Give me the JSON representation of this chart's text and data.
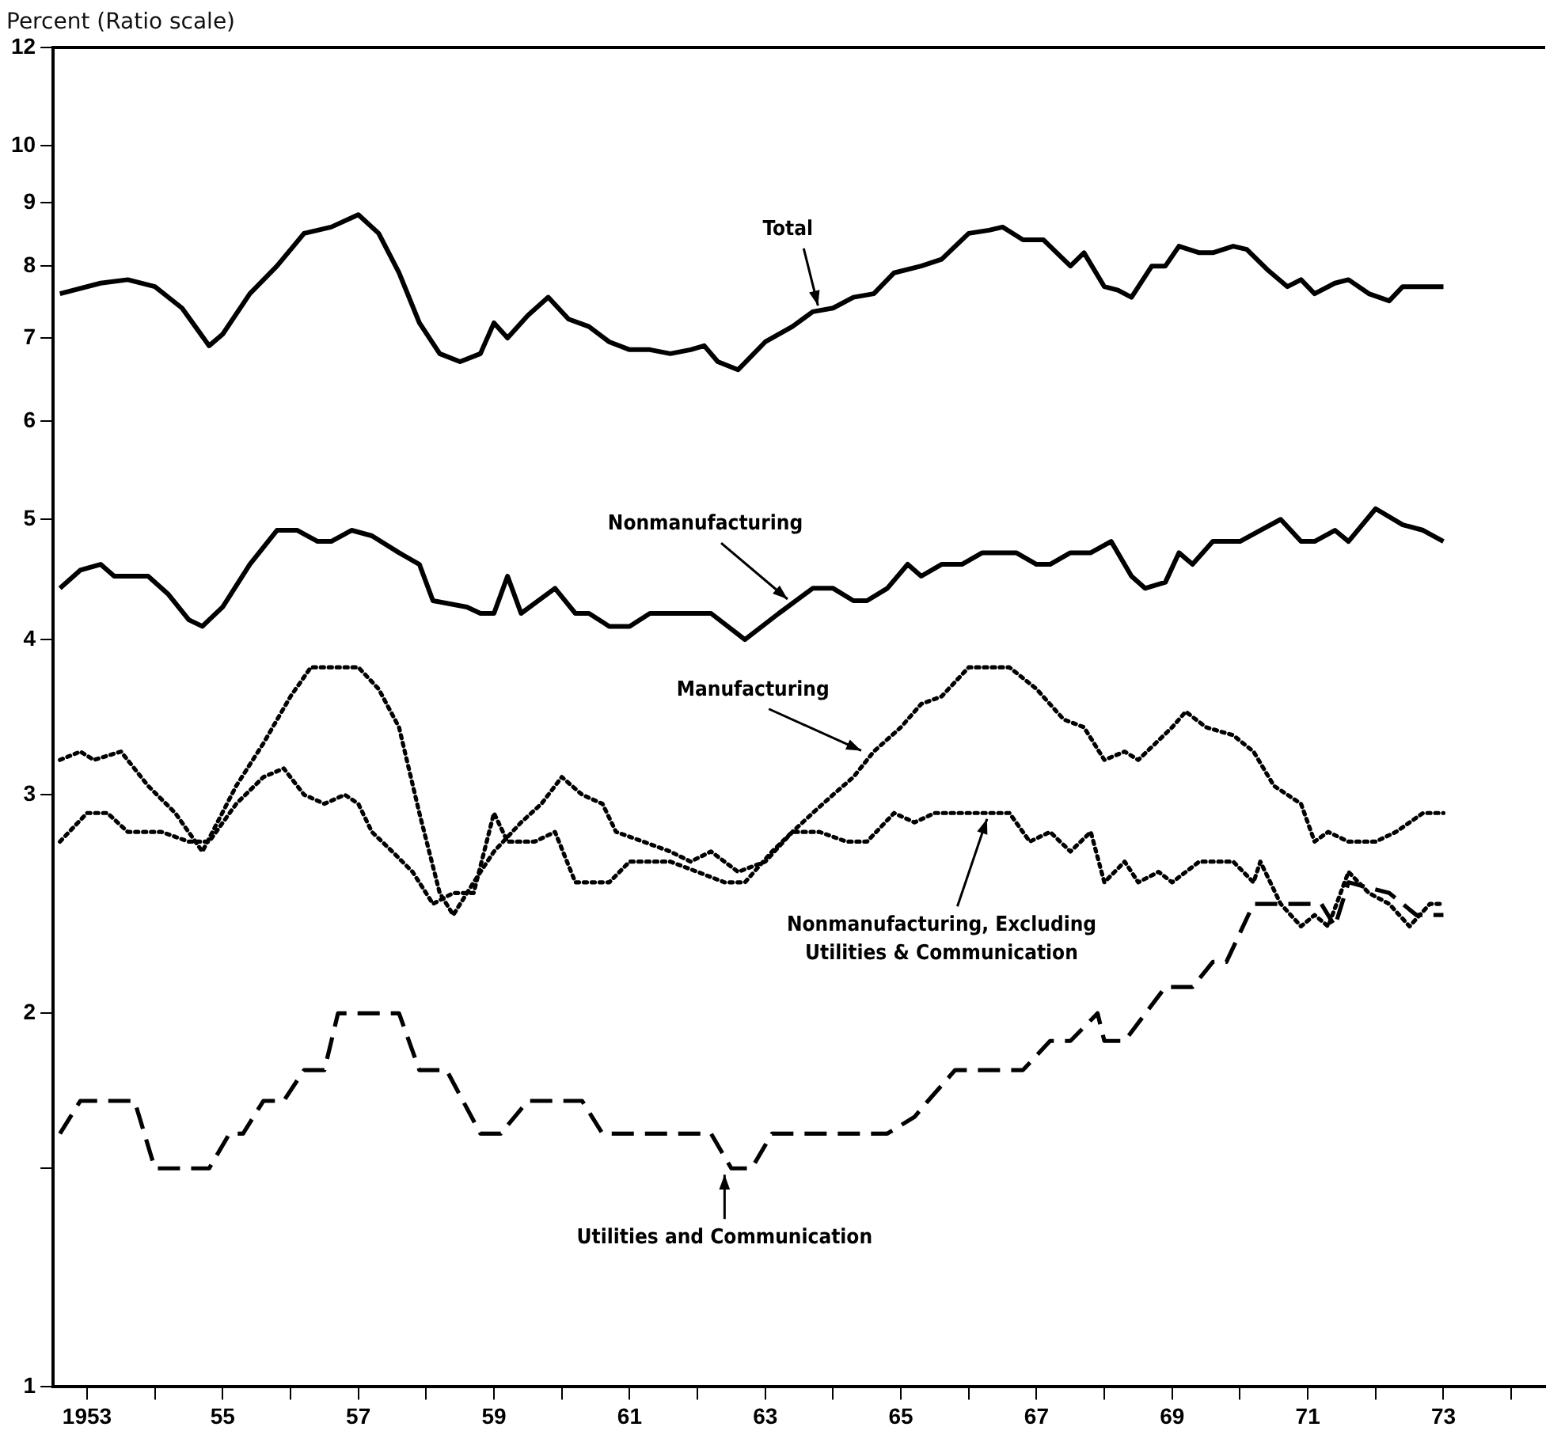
{
  "chart_data": {
    "type": "line",
    "ylabel": "Percent (Ratio scale)",
    "log": "y",
    "grid": false,
    "legend": false,
    "marker": "none",
    "xlim": [
      1952.5,
      1974.5
    ],
    "xticks": [
      1953,
      {
        "value": 1954,
        "label": null
      },
      {
        "value": 1955,
        "label": "55"
      },
      {
        "value": 1956,
        "label": null
      },
      {
        "value": 1957,
        "label": "57"
      },
      {
        "value": 1958,
        "label": null
      },
      {
        "value": 1959,
        "label": "59"
      },
      {
        "value": 1960,
        "label": null
      },
      {
        "value": 1961,
        "label": "61"
      },
      {
        "value": 1962,
        "label": null
      },
      {
        "value": 1963,
        "label": "63"
      },
      {
        "value": 1964,
        "label": null
      },
      {
        "value": 1965,
        "label": "65"
      },
      {
        "value": 1966,
        "label": null
      },
      {
        "value": 1967,
        "label": "67"
      },
      {
        "value": 1968,
        "label": null
      },
      {
        "value": 1969,
        "label": "69"
      },
      {
        "value": 1970,
        "label": null
      },
      {
        "value": 1971,
        "label": "71"
      },
      {
        "value": 1972,
        "label": null
      },
      {
        "value": 1973,
        "label": "73"
      },
      {
        "value": 1974,
        "label": null
      }
    ],
    "ylim": [
      1,
      12
    ],
    "yticks": [
      1,
      {
        "value": 1.5,
        "label": null
      },
      2,
      3,
      4,
      5,
      6,
      7,
      8,
      9,
      10,
      12
    ],
    "series": [
      {
        "color": "#000000",
        "line_style": "solid",
        "x": [
          1952.6,
          1953.2,
          1953.6,
          1954.0,
          1954.4,
          1954.8,
          1955.0,
          1955.4,
          1955.8,
          1956.2,
          1956.6,
          1957.0,
          1957.3,
          1957.6,
          1957.9,
          1958.2,
          1958.5,
          1958.8,
          1959.0,
          1959.2,
          1959.5,
          1959.8,
          1960.1,
          1960.4,
          1960.7,
          1961.0,
          1961.3,
          1961.6,
          1961.9,
          1962.1,
          1962.3,
          1962.6,
          1963.0,
          1963.4,
          1963.7,
          1964.0,
          1964.3,
          1964.6,
          1964.9,
          1965.3,
          1965.6,
          1966.0,
          1966.3,
          1966.5,
          1966.8,
          1967.1,
          1967.5,
          1967.7,
          1968.0,
          1968.2,
          1968.4,
          1968.7,
          1968.9,
          1969.1,
          1969.4,
          1969.6,
          1969.9,
          1970.1,
          1970.4,
          1970.7,
          1970.9,
          1971.1,
          1971.4,
          1971.6,
          1971.9,
          1972.2,
          1972.4,
          1973.0
        ],
        "values": [
          7.6,
          7.75,
          7.8,
          7.7,
          7.4,
          6.9,
          7.05,
          7.6,
          8.0,
          8.5,
          8.6,
          8.8,
          8.5,
          7.9,
          7.2,
          6.8,
          6.7,
          6.8,
          7.2,
          7.0,
          7.3,
          7.55,
          7.25,
          7.15,
          6.95,
          6.85,
          6.85,
          6.8,
          6.85,
          6.9,
          6.7,
          6.6,
          6.95,
          7.15,
          7.35,
          7.4,
          7.55,
          7.6,
          7.9,
          8.0,
          8.1,
          8.5,
          8.55,
          8.6,
          8.4,
          8.4,
          8.0,
          8.2,
          7.7,
          7.65,
          7.55,
          8.0,
          8.0,
          8.3,
          8.2,
          8.2,
          8.3,
          8.25,
          7.95,
          7.7,
          7.8,
          7.6,
          7.75,
          7.8,
          7.6,
          7.5,
          7.7,
          7.7
        ]
      },
      {
        "color": "#000000",
        "line_style": "solid",
        "x": [
          1952.6,
          1952.9,
          1953.2,
          1953.4,
          1953.9,
          1954.2,
          1954.5,
          1954.7,
          1955.0,
          1955.4,
          1955.8,
          1956.1,
          1956.4,
          1956.6,
          1956.9,
          1957.2,
          1957.6,
          1957.9,
          1958.1,
          1958.6,
          1958.8,
          1959.0,
          1959.2,
          1959.4,
          1959.9,
          1960.2,
          1960.4,
          1960.7,
          1961.0,
          1961.3,
          1962.2,
          1962.7,
          1963.2,
          1963.7,
          1964.0,
          1964.3,
          1964.5,
          1964.8,
          1965.1,
          1965.3,
          1965.6,
          1965.9,
          1966.2,
          1966.7,
          1967.0,
          1967.2,
          1967.5,
          1967.8,
          1968.1,
          1968.4,
          1968.6,
          1968.9,
          1969.1,
          1969.3,
          1969.6,
          1970.0,
          1970.3,
          1970.6,
          1970.9,
          1971.1,
          1971.4,
          1971.6,
          1972.0,
          1972.4,
          1972.7,
          1973.0
        ],
        "values": [
          4.4,
          4.55,
          4.6,
          4.5,
          4.5,
          4.35,
          4.15,
          4.1,
          4.25,
          4.6,
          4.9,
          4.9,
          4.8,
          4.8,
          4.9,
          4.85,
          4.7,
          4.6,
          4.3,
          4.25,
          4.2,
          4.2,
          4.5,
          4.2,
          4.4,
          4.2,
          4.2,
          4.1,
          4.1,
          4.2,
          4.2,
          4.0,
          4.2,
          4.4,
          4.4,
          4.3,
          4.3,
          4.4,
          4.6,
          4.5,
          4.6,
          4.6,
          4.7,
          4.7,
          4.6,
          4.6,
          4.7,
          4.7,
          4.8,
          4.5,
          4.4,
          4.45,
          4.7,
          4.6,
          4.8,
          4.8,
          4.9,
          5.0,
          4.8,
          4.8,
          4.9,
          4.8,
          5.1,
          4.95,
          4.9,
          4.8
        ]
      },
      {
        "color": "#000000",
        "line_style": "dotted",
        "x": [
          1952.6,
          1952.9,
          1953.1,
          1953.5,
          1953.9,
          1954.3,
          1954.7,
          1955.2,
          1955.6,
          1956.0,
          1956.3,
          1957.0,
          1957.3,
          1957.6,
          1957.9,
          1958.2,
          1958.4,
          1958.7,
          1959.0,
          1959.4,
          1959.7,
          1960.0,
          1960.3,
          1960.6,
          1960.8,
          1961.2,
          1961.6,
          1961.9,
          1962.2,
          1962.6,
          1963.0,
          1963.4,
          1963.7,
          1964.0,
          1964.3,
          1964.6,
          1965.0,
          1965.3,
          1965.6,
          1966.0,
          1966.6,
          1967.0,
          1967.4,
          1967.7,
          1968.0,
          1968.3,
          1968.5,
          1969.0,
          1969.2,
          1969.5,
          1969.9,
          1970.2,
          1970.5,
          1970.9,
          1971.1,
          1971.3,
          1971.6,
          1972.0,
          1972.3,
          1972.7,
          1973.0
        ],
        "values": [
          3.2,
          3.25,
          3.2,
          3.25,
          3.05,
          2.9,
          2.7,
          3.05,
          3.3,
          3.6,
          3.8,
          3.8,
          3.65,
          3.4,
          2.9,
          2.5,
          2.4,
          2.55,
          2.7,
          2.85,
          2.95,
          3.1,
          3.0,
          2.95,
          2.8,
          2.75,
          2.7,
          2.65,
          2.7,
          2.6,
          2.65,
          2.8,
          2.9,
          3.0,
          3.1,
          3.25,
          3.4,
          3.55,
          3.6,
          3.8,
          3.8,
          3.65,
          3.45,
          3.4,
          3.2,
          3.25,
          3.2,
          3.4,
          3.5,
          3.4,
          3.35,
          3.25,
          3.05,
          2.95,
          2.75,
          2.8,
          2.75,
          2.75,
          2.8,
          2.9,
          2.9
        ]
      },
      {
        "color": "#000000",
        "line_style": "dotted",
        "x": [
          1952.6,
          1953.0,
          1953.3,
          1953.6,
          1954.1,
          1954.5,
          1954.8,
          1955.2,
          1955.6,
          1955.9,
          1956.2,
          1956.5,
          1956.8,
          1957.0,
          1957.2,
          1957.5,
          1957.8,
          1958.1,
          1958.4,
          1958.7,
          1959.0,
          1959.2,
          1959.6,
          1959.9,
          1960.2,
          1960.7,
          1961.0,
          1961.6,
          1962.0,
          1962.4,
          1962.7,
          1963.1,
          1963.4,
          1963.8,
          1964.2,
          1964.5,
          1964.9,
          1965.2,
          1965.5,
          1966.6,
          1966.9,
          1967.2,
          1967.5,
          1967.8,
          1968.0,
          1968.3,
          1968.5,
          1968.8,
          1969.0,
          1969.4,
          1969.9,
          1970.2,
          1970.3,
          1970.6,
          1970.9,
          1971.1,
          1971.3,
          1971.6,
          1971.9,
          1972.2,
          1972.5,
          1972.8,
          1973.0
        ],
        "values": [
          2.75,
          2.9,
          2.9,
          2.8,
          2.8,
          2.75,
          2.75,
          2.95,
          3.1,
          3.15,
          3.0,
          2.95,
          3.0,
          2.95,
          2.8,
          2.7,
          2.6,
          2.45,
          2.5,
          2.5,
          2.9,
          2.75,
          2.75,
          2.8,
          2.55,
          2.55,
          2.65,
          2.65,
          2.6,
          2.55,
          2.55,
          2.7,
          2.8,
          2.8,
          2.75,
          2.75,
          2.9,
          2.85,
          2.9,
          2.9,
          2.75,
          2.8,
          2.7,
          2.8,
          2.55,
          2.65,
          2.55,
          2.6,
          2.55,
          2.65,
          2.65,
          2.55,
          2.65,
          2.45,
          2.35,
          2.4,
          2.35,
          2.6,
          2.5,
          2.45,
          2.35,
          2.45,
          2.45
        ]
      },
      {
        "color": "#000000",
        "line_style": "dashed",
        "x": [
          1952.6,
          1952.9,
          1953.7,
          1954.0,
          1954.8,
          1955.1,
          1955.3,
          1955.6,
          1955.9,
          1956.2,
          1956.5,
          1956.7,
          1957.6,
          1957.9,
          1958.3,
          1958.8,
          1959.1,
          1959.5,
          1960.3,
          1960.6,
          1961.3,
          1962.2,
          1962.5,
          1962.8,
          1963.1,
          1964.8,
          1965.2,
          1965.4,
          1965.8,
          1966.8,
          1967.2,
          1967.5,
          1967.9,
          1968.0,
          1968.3,
          1968.9,
          1969.3,
          1969.6,
          1969.8,
          1970.2,
          1970.6,
          1971.2,
          1971.4,
          1971.6,
          1972.2,
          1972.6,
          1973.0
        ],
        "values": [
          1.6,
          1.7,
          1.7,
          1.5,
          1.5,
          1.6,
          1.6,
          1.7,
          1.7,
          1.8,
          1.8,
          2.0,
          2.0,
          1.8,
          1.8,
          1.6,
          1.6,
          1.7,
          1.7,
          1.6,
          1.6,
          1.6,
          1.5,
          1.5,
          1.6,
          1.6,
          1.65,
          1.7,
          1.8,
          1.8,
          1.9,
          1.9,
          2.0,
          1.9,
          1.9,
          2.1,
          2.1,
          2.2,
          2.2,
          2.45,
          2.45,
          2.45,
          2.35,
          2.55,
          2.5,
          2.4,
          2.4
        ]
      }
    ],
    "annotations": [
      {
        "text": "Total",
        "x": 1963.8,
        "y": 7.35
      },
      {
        "text": "Nonmanufacturing",
        "x": 1963.4,
        "y": 4.28
      },
      {
        "text": "Manufacturing",
        "x": 1964.5,
        "y": 3.24
      },
      {
        "text": "Nonmanufacturing, Excluding Utilities & Communication",
        "x": 1966.3,
        "y": 2.9
      },
      {
        "text": "Utilities and Communication",
        "x": 1962.4,
        "y": 1.5
      }
    ]
  }
}
